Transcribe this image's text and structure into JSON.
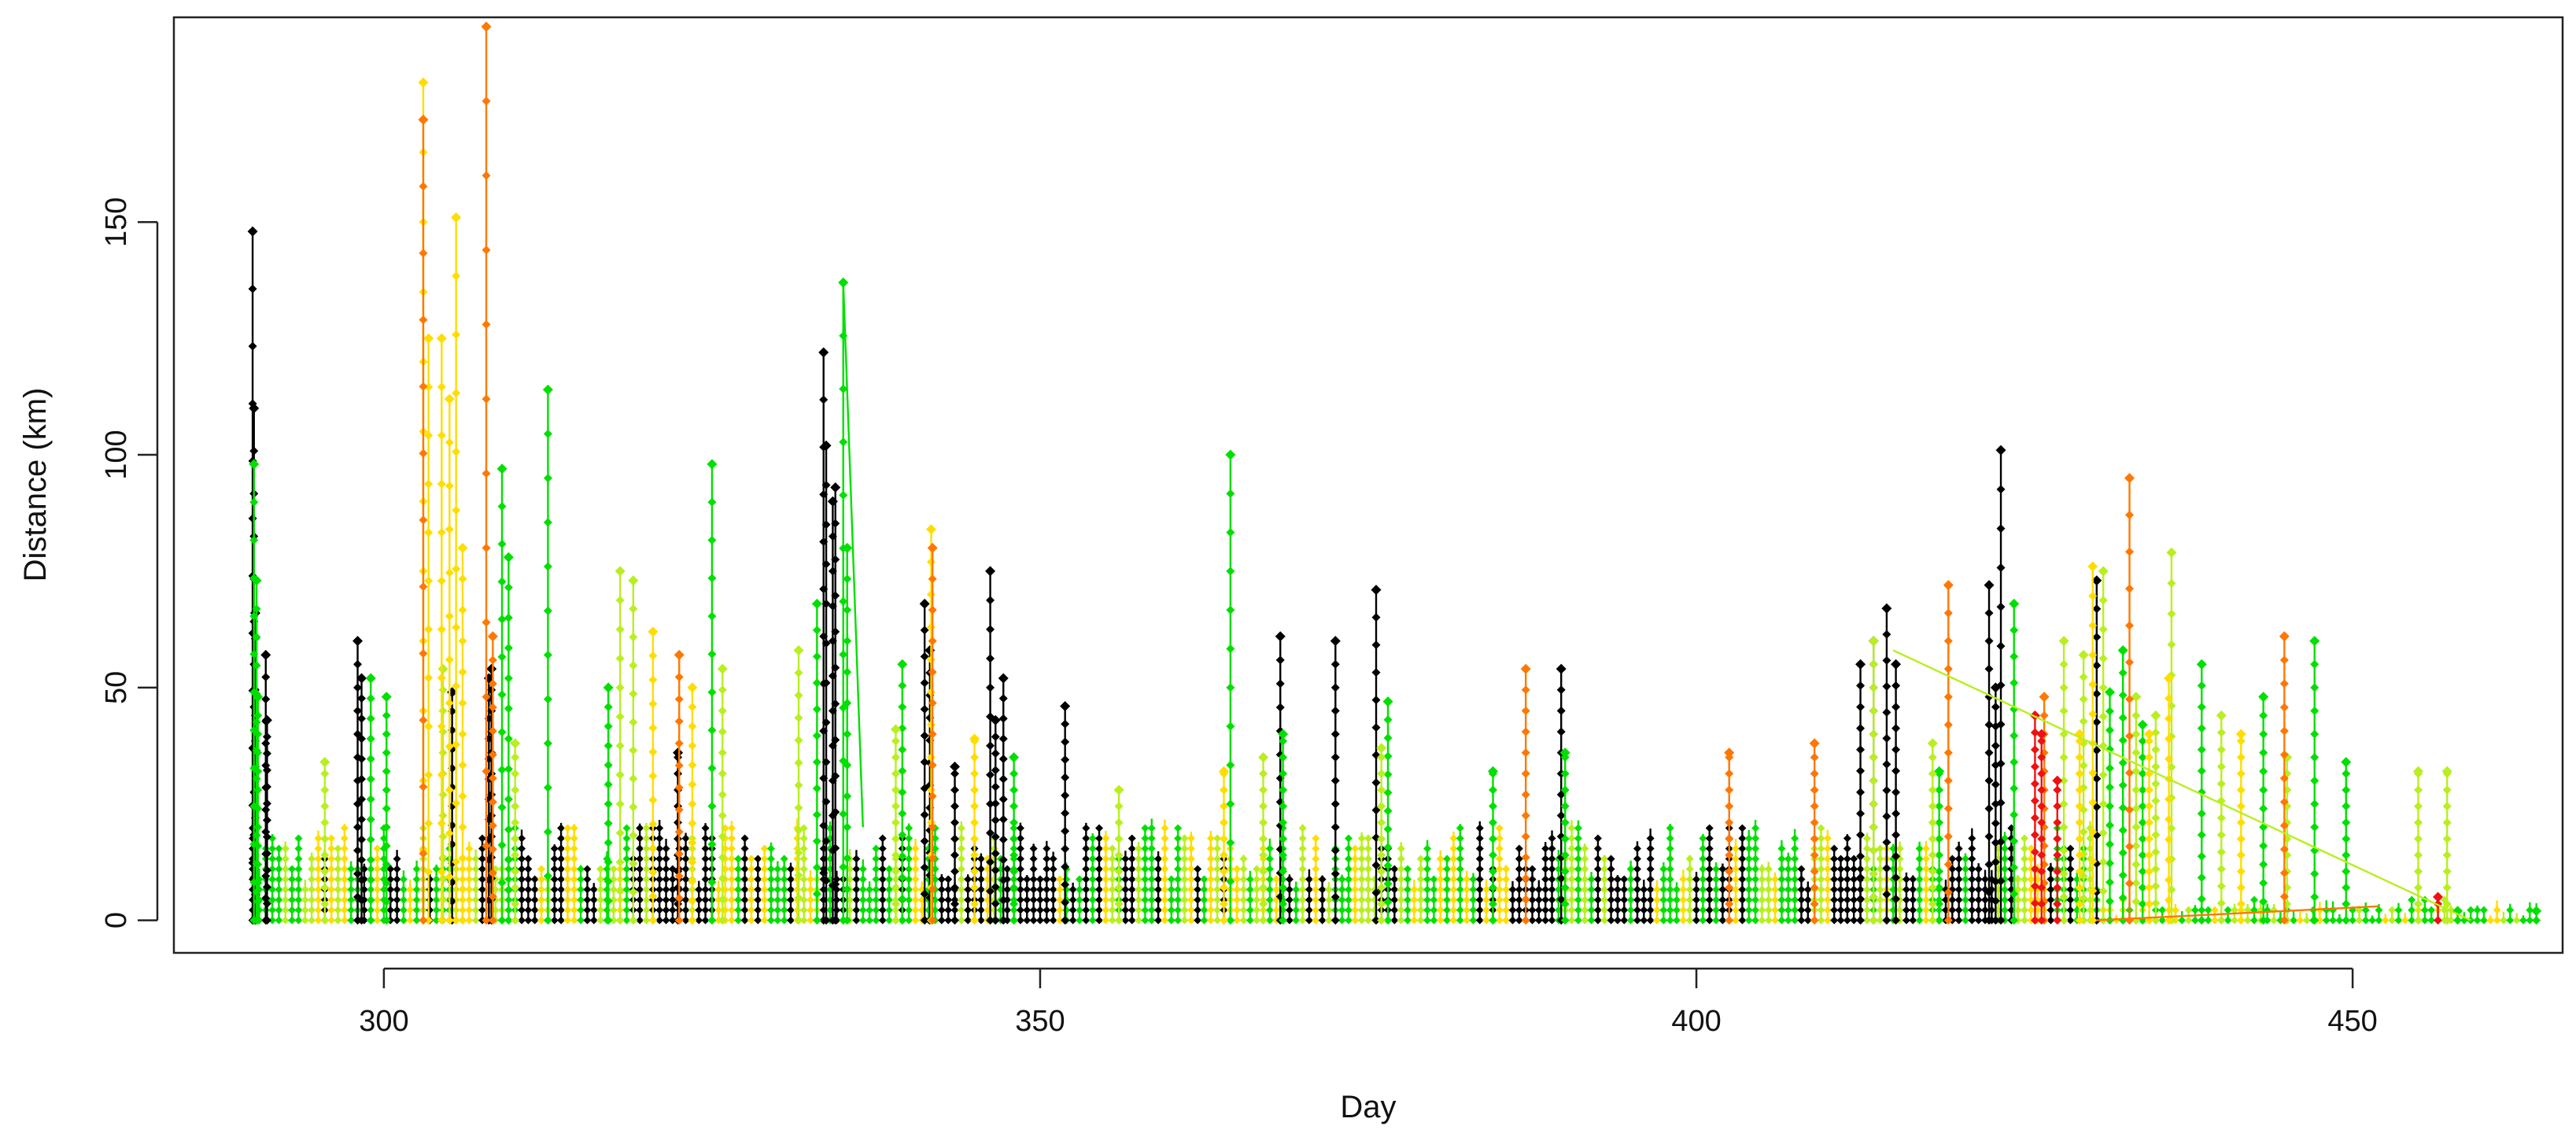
{
  "chart_data": {
    "type": "line",
    "title": "",
    "xlabel": "Day",
    "ylabel": "Distance (km)",
    "xlim": [
      284,
      466
    ],
    "ylim": [
      -7,
      194
    ],
    "xticks": [
      300,
      350,
      400,
      450
    ],
    "yticks": [
      0,
      50,
      100,
      150
    ],
    "grid": false,
    "legend": "none",
    "markers": "small filled diamonds",
    "colors": {
      "black": "#000000",
      "green": "#00e000",
      "lime": "#b8ef20",
      "yellow": "#ffdd00",
      "orange": "#ff7700",
      "red": "#ee1111"
    },
    "series": [
      {
        "color": "#000000",
        "x": [
          290.0,
          290.1,
          290.2,
          291.0,
          291.1,
          298.0,
          298.3,
          305.2,
          308.0,
          308.2,
          322.4,
          333.5,
          333.7,
          334.2,
          334.4,
          341.2,
          341.6,
          343.5,
          346.2,
          346.6,
          347.2,
          351.9,
          368.3,
          372.5,
          375.6,
          389.7,
          412.5,
          413.5,
          414.5,
          415.2,
          422.3,
          422.8,
          423.2,
          430.5
        ],
        "y": [
          148,
          110,
          66,
          57,
          43,
          60,
          52,
          49,
          52,
          54,
          36,
          122,
          102,
          90,
          93,
          68,
          58,
          33,
          75,
          43,
          52,
          46,
          61,
          60,
          71,
          54,
          55,
          60,
          67,
          55,
          72,
          50,
          101,
          73
        ]
      },
      {
        "color": "#00e000",
        "x": [
          290.1,
          290.3,
          290.4,
          299.0,
          300.2,
          309.0,
          309.5,
          312.5,
          317.1,
          325.0,
          333.0,
          335.0,
          335.3,
          339.5,
          348.0,
          364.5,
          368.5,
          376.5,
          384.5,
          390.0,
          418.5,
          424.2,
          431.5,
          432.5,
          434.0,
          438.5,
          443.2,
          447.1,
          449.5,
          458.0,
          464.0
        ],
        "y": [
          98,
          73,
          48,
          52,
          48,
          97,
          78,
          114,
          50,
          98,
          68,
          137,
          80,
          55,
          35,
          100,
          40,
          47,
          32,
          36,
          32,
          68,
          49,
          58,
          42,
          55,
          48,
          60,
          34,
          2,
          2
        ]
      },
      {
        "color": "#b8ef20",
        "x": [
          295.5,
          304.5,
          310.0,
          318.0,
          319.0,
          325.8,
          331.6,
          339.0,
          356.0,
          367.0,
          376.0,
          413.5,
          418.0,
          428.0,
          429.5,
          431.0,
          433.5,
          435.0,
          436.2,
          440.0,
          445.0,
          455.0,
          457.2
        ],
        "y": [
          34,
          54,
          38,
          75,
          73,
          54,
          58,
          41,
          28,
          35,
          37,
          60,
          38,
          60,
          57,
          75,
          48,
          44,
          79,
          44,
          35,
          32,
          32
        ]
      },
      {
        "color": "#ffdd00",
        "x": [
          303.0,
          303.4,
          304.4,
          305.0,
          305.5,
          306.0,
          320.5,
          323.5,
          341.7,
          345.0,
          364.0,
          429.2,
          430.2,
          434.5,
          436.0,
          441.5
        ],
        "y": [
          180,
          125,
          125,
          112,
          151,
          80,
          62,
          50,
          84,
          39,
          32,
          40,
          76,
          40,
          52,
          40
        ]
      },
      {
        "color": "#ff7700",
        "x": [
          303.0,
          307.8,
          308.3,
          322.5,
          341.8,
          387.0,
          402.5,
          409.0,
          419.2,
          426.5,
          433.0,
          444.8
        ],
        "y": [
          172,
          192,
          61,
          57,
          80,
          54,
          36,
          38,
          72,
          48,
          95,
          61
        ]
      },
      {
        "color": "#ee1111",
        "x": [
          425.8,
          426.3,
          427.5,
          456.5
        ],
        "y": [
          44,
          40,
          30,
          5
        ]
      }
    ]
  }
}
